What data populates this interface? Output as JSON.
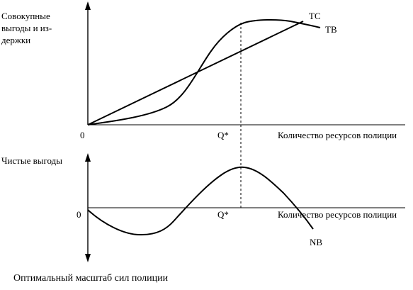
{
  "chart_data": [
    {
      "type": "line",
      "ylabel_lines": [
        "Совокупные",
        "выгоды и из-",
        "держки"
      ],
      "xlabel": "Количество ресурсов полиции",
      "origin_label": "0",
      "optimum_label": "Q*",
      "series": [
        {
          "name": "TC",
          "shape": "s-curve",
          "stroke": "#000000"
        },
        {
          "name": "TB",
          "shape": "linear",
          "stroke": "#000000"
        }
      ],
      "grid": false
    },
    {
      "type": "line",
      "ylabel": "Чистые выгоды",
      "xlabel": "Количество ресурсов полиции",
      "origin_label": "0",
      "optimum_label": "Q*",
      "series": [
        {
          "name": "NB",
          "shape": "wave",
          "stroke": "#000000"
        }
      ],
      "grid": false
    }
  ],
  "caption": "Оптимальный масштаб сил полиции"
}
